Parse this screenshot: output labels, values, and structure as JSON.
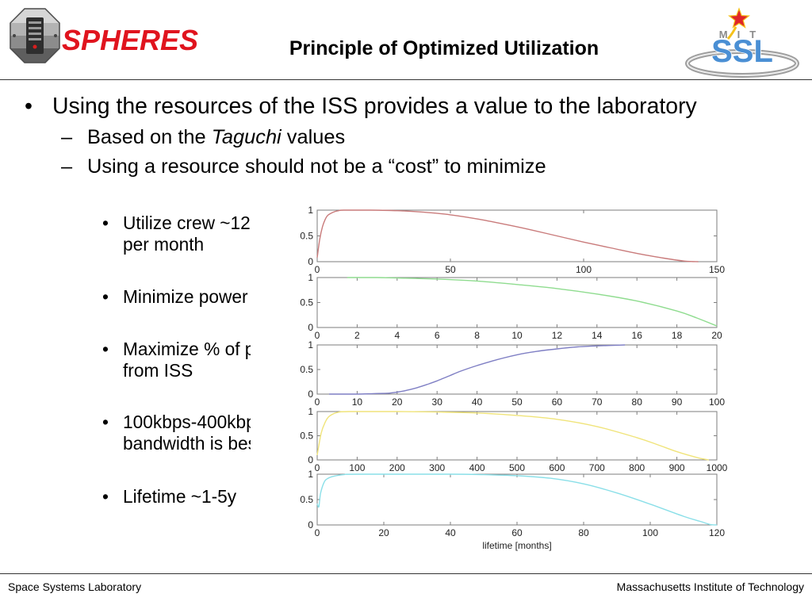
{
  "markers": {
    "bullet": "•",
    "dash": "–"
  },
  "header": {
    "logo_word": "SPHERES",
    "title": "Principle of Optimized Utilization",
    "ssl_logo": {
      "small_text": "MIT",
      "main_text": "SSL"
    }
  },
  "bullets": {
    "main": "Using the resources of the ISS provides a value to the laboratory",
    "subs": [
      {
        "before": "Based on the ",
        "italic": "Taguchi",
        "after": " values"
      },
      {
        "text": "Using a resource should not be a “cost” to minimize"
      }
    ],
    "items": [
      {
        "lines": [
          "Utilize crew ~12",
          "per month"
        ]
      },
      {
        "lines": [
          "Minimize power"
        ]
      },
      {
        "lines": [
          "Maximize % of p",
          "from ISS"
        ]
      },
      {
        "lines": [
          "100kbps-400kbp",
          "bandwidth is bes"
        ]
      },
      {
        "lines": [
          "Lifetime ~1-5y"
        ]
      }
    ]
  },
  "footer": {
    "left": "Space Systems Laboratory",
    "right": "Massachusetts Institute of Technology"
  },
  "colors": {
    "logo_red": "#e0141e",
    "ssl_blue": "#4a8fd4",
    "star_red": "#e0262a",
    "star_gold": "#f5c11a",
    "rule": "#333333",
    "axes": "#7d7d7d"
  },
  "chart_data": [
    {
      "type": "line",
      "x": [
        0,
        1,
        2,
        3,
        4,
        6,
        8,
        10,
        20,
        30,
        40,
        50,
        60,
        70,
        80,
        90,
        100,
        110,
        120,
        130,
        138,
        143
      ],
      "y": [
        0.08,
        0.45,
        0.68,
        0.82,
        0.9,
        0.96,
        0.99,
        1.0,
        1.0,
        0.99,
        0.96,
        0.91,
        0.83,
        0.73,
        0.62,
        0.5,
        0.38,
        0.27,
        0.16,
        0.07,
        0.01,
        0.0
      ],
      "xlim": [
        0,
        150
      ],
      "ylim": [
        0,
        1
      ],
      "xticks": [
        0,
        50,
        100,
        150
      ],
      "yticks": [
        0,
        0.5,
        1
      ],
      "color": "#c97b7b",
      "grid": false
    },
    {
      "type": "line",
      "x": [
        1.5,
        3,
        4,
        6,
        8,
        10,
        12,
        14,
        16,
        18,
        19,
        20
      ],
      "y": [
        1.0,
        1.0,
        0.99,
        0.97,
        0.93,
        0.86,
        0.78,
        0.67,
        0.53,
        0.33,
        0.19,
        0.03
      ],
      "xlim": [
        0,
        20
      ],
      "ylim": [
        0,
        1
      ],
      "xticks": [
        0,
        2,
        4,
        6,
        8,
        10,
        12,
        14,
        16,
        18,
        20
      ],
      "yticks": [
        0,
        0.5,
        1
      ],
      "color": "#8fdc8f",
      "grid": false
    },
    {
      "type": "line",
      "x": [
        3,
        10,
        14,
        18,
        20,
        22,
        25,
        28,
        30,
        33,
        36,
        40,
        45,
        50,
        55,
        60,
        65,
        70,
        77
      ],
      "y": [
        0,
        0,
        0.01,
        0.02,
        0.04,
        0.07,
        0.13,
        0.21,
        0.27,
        0.37,
        0.47,
        0.58,
        0.7,
        0.8,
        0.87,
        0.92,
        0.96,
        0.98,
        1.0
      ],
      "xlim": [
        0,
        100
      ],
      "ylim": [
        0,
        1
      ],
      "xticks": [
        0,
        10,
        20,
        30,
        40,
        50,
        60,
        70,
        80,
        90,
        100
      ],
      "yticks": [
        0,
        0.5,
        1
      ],
      "color": "#7f7fc4",
      "grid": false
    },
    {
      "type": "line",
      "x": [
        0,
        10,
        20,
        30,
        50,
        80,
        200,
        300,
        400,
        500,
        600,
        700,
        800,
        850,
        900,
        950,
        980
      ],
      "y": [
        0.1,
        0.55,
        0.78,
        0.9,
        0.98,
        1.0,
        1.0,
        0.99,
        0.97,
        0.92,
        0.84,
        0.69,
        0.46,
        0.32,
        0.17,
        0.05,
        0.0
      ],
      "xlim": [
        0,
        1000
      ],
      "ylim": [
        0,
        1
      ],
      "xticks": [
        0,
        100,
        200,
        300,
        400,
        500,
        600,
        700,
        800,
        900,
        1000
      ],
      "yticks": [
        0,
        0.5,
        1
      ],
      "color": "#f0e47a",
      "grid": false
    },
    {
      "type": "line",
      "x": [
        0,
        0.5,
        1,
        2,
        3,
        5,
        8,
        12,
        40,
        50,
        60,
        70,
        80,
        90,
        100,
        110,
        115,
        118,
        120
      ],
      "y": [
        0.42,
        0.36,
        0.62,
        0.83,
        0.91,
        0.96,
        0.99,
        1.0,
        1.0,
        0.99,
        0.97,
        0.92,
        0.81,
        0.63,
        0.41,
        0.17,
        0.07,
        0.01,
        0.0
      ],
      "xlim": [
        0,
        120
      ],
      "ylim": [
        0,
        1
      ],
      "xticks": [
        0,
        20,
        40,
        60,
        80,
        100,
        120
      ],
      "yticks": [
        0,
        0.5,
        1
      ],
      "xlabel": "lifetime [months]",
      "color": "#8adfe8",
      "grid": false
    }
  ]
}
